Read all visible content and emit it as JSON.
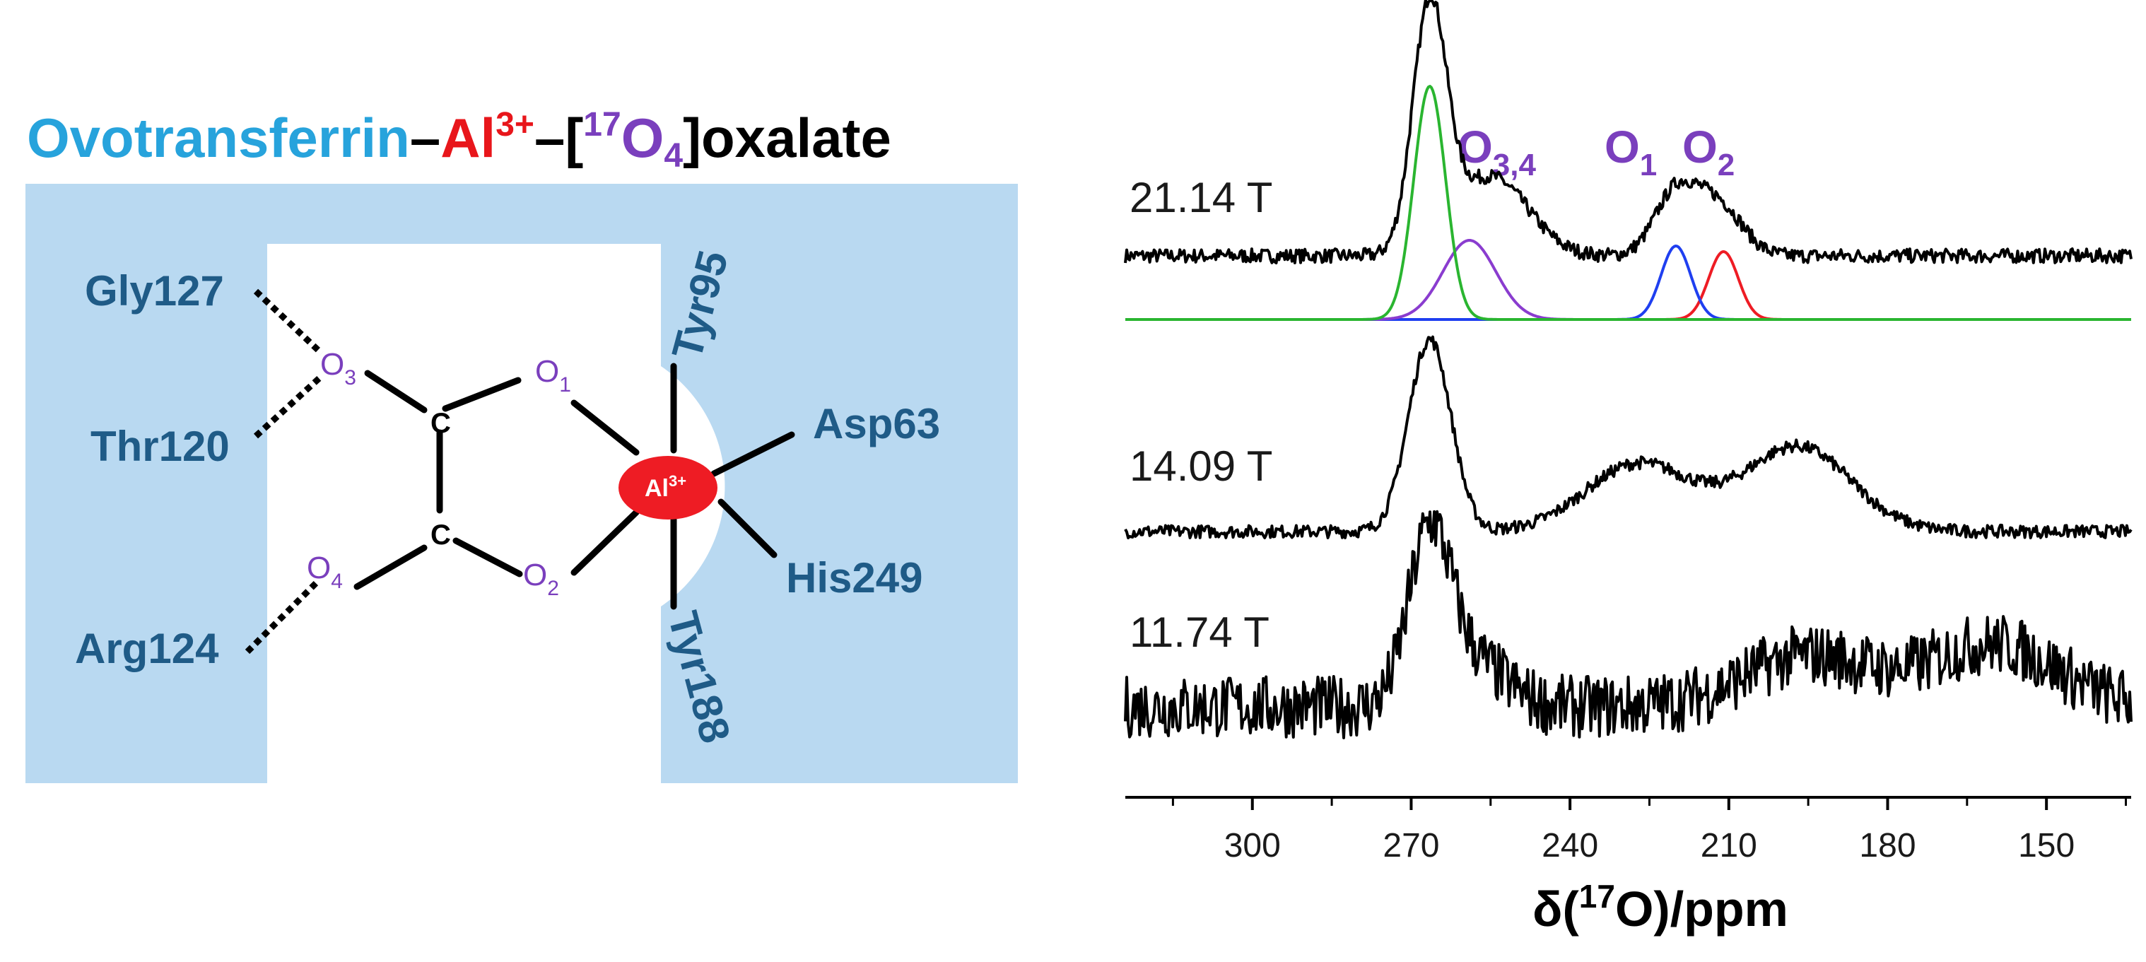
{
  "title": {
    "part1": "Ovotransferrin",
    "dash1": "–",
    "al": "Al",
    "al_charge": "3+",
    "dash2": "–[",
    "iso": "17",
    "o": "O",
    "o_sub": "4",
    "close": "]oxalate"
  },
  "colors": {
    "protein_fill": "#b9d9f1",
    "title_blue": "#27a3dc",
    "title_red": "#e8161b",
    "title_purple": "#7a3fbd",
    "residue": "#1f5b87",
    "oxygen": "#7a3fbd",
    "metal": "#ee1c24",
    "green": "#2ab530",
    "purple": "#8a3ccf",
    "blue": "#1f3ff0",
    "red": "#ee1c24"
  },
  "diagram": {
    "residues": {
      "gly127": "Gly127",
      "thr120": "Thr120",
      "arg124": "Arg124",
      "tyr95": "Tyr95",
      "asp63": "Asp63",
      "his249": "His249",
      "tyr188": "Tyr188"
    },
    "oxygens": {
      "o1": "O",
      "o1_sub": "1",
      "o2": "O",
      "o2_sub": "2",
      "o3": "O",
      "o3_sub": "3",
      "o4": "O",
      "o4_sub": "4"
    },
    "carbons": {
      "c1": "C",
      "c2": "C"
    },
    "metal": {
      "label": "Al",
      "charge": "3+"
    }
  },
  "spectra": {
    "field_labels": [
      "21.14 T",
      "14.09 T",
      "11.74 T"
    ],
    "peak_labels": {
      "o34": "O",
      "o34_sub": "3,4",
      "o1": "O",
      "o1_sub": "1",
      "o2": "O",
      "o2_sub": "2"
    },
    "axis": {
      "label_prefix": "δ(",
      "label_iso": "17",
      "label_suffix": "O)/ppm",
      "ticks": [
        "300",
        "270",
        "240",
        "210",
        "180",
        "150"
      ],
      "xlim": [
        324,
        134
      ],
      "reversed": true
    },
    "chart_data": {
      "type": "line",
      "xlabel": "δ(17O)/ppm",
      "xlim": [
        324,
        134
      ],
      "x_reversed": true,
      "series": [
        {
          "name": "21.14 T",
          "peaks": [
            {
              "center": 266.5,
              "height": 0.85
            },
            {
              "center": 255,
              "height": 0.28
            },
            {
              "center": 220,
              "height": 0.22
            },
            {
              "center": 212,
              "height": 0.18
            }
          ]
        },
        {
          "name": "O3,4",
          "components": [
            {
              "center": 266.5,
              "height": 1.0,
              "color": "green"
            },
            {
              "center": 259,
              "height": 0.28,
              "color": "purple"
            }
          ]
        },
        {
          "name": "O1",
          "components": [
            {
              "center": 220,
              "height": 0.26,
              "color": "blue"
            }
          ]
        },
        {
          "name": "O2",
          "components": [
            {
              "center": 211,
              "height": 0.24,
              "color": "red"
            }
          ]
        },
        {
          "name": "14.09 T",
          "peaks": [
            {
              "center": 266.5,
              "height": 0.68
            },
            {
              "center": 227,
              "height": 0.24
            },
            {
              "center": 197,
              "height": 0.3
            }
          ]
        },
        {
          "name": "11.74 T",
          "peaks": [
            {
              "center": 266.5,
              "height": 0.6
            },
            {
              "center": 258,
              "height": 0.15
            },
            {
              "center": 195,
              "height": 0.18
            },
            {
              "center": 160,
              "height": 0.22
            }
          ]
        }
      ]
    }
  }
}
